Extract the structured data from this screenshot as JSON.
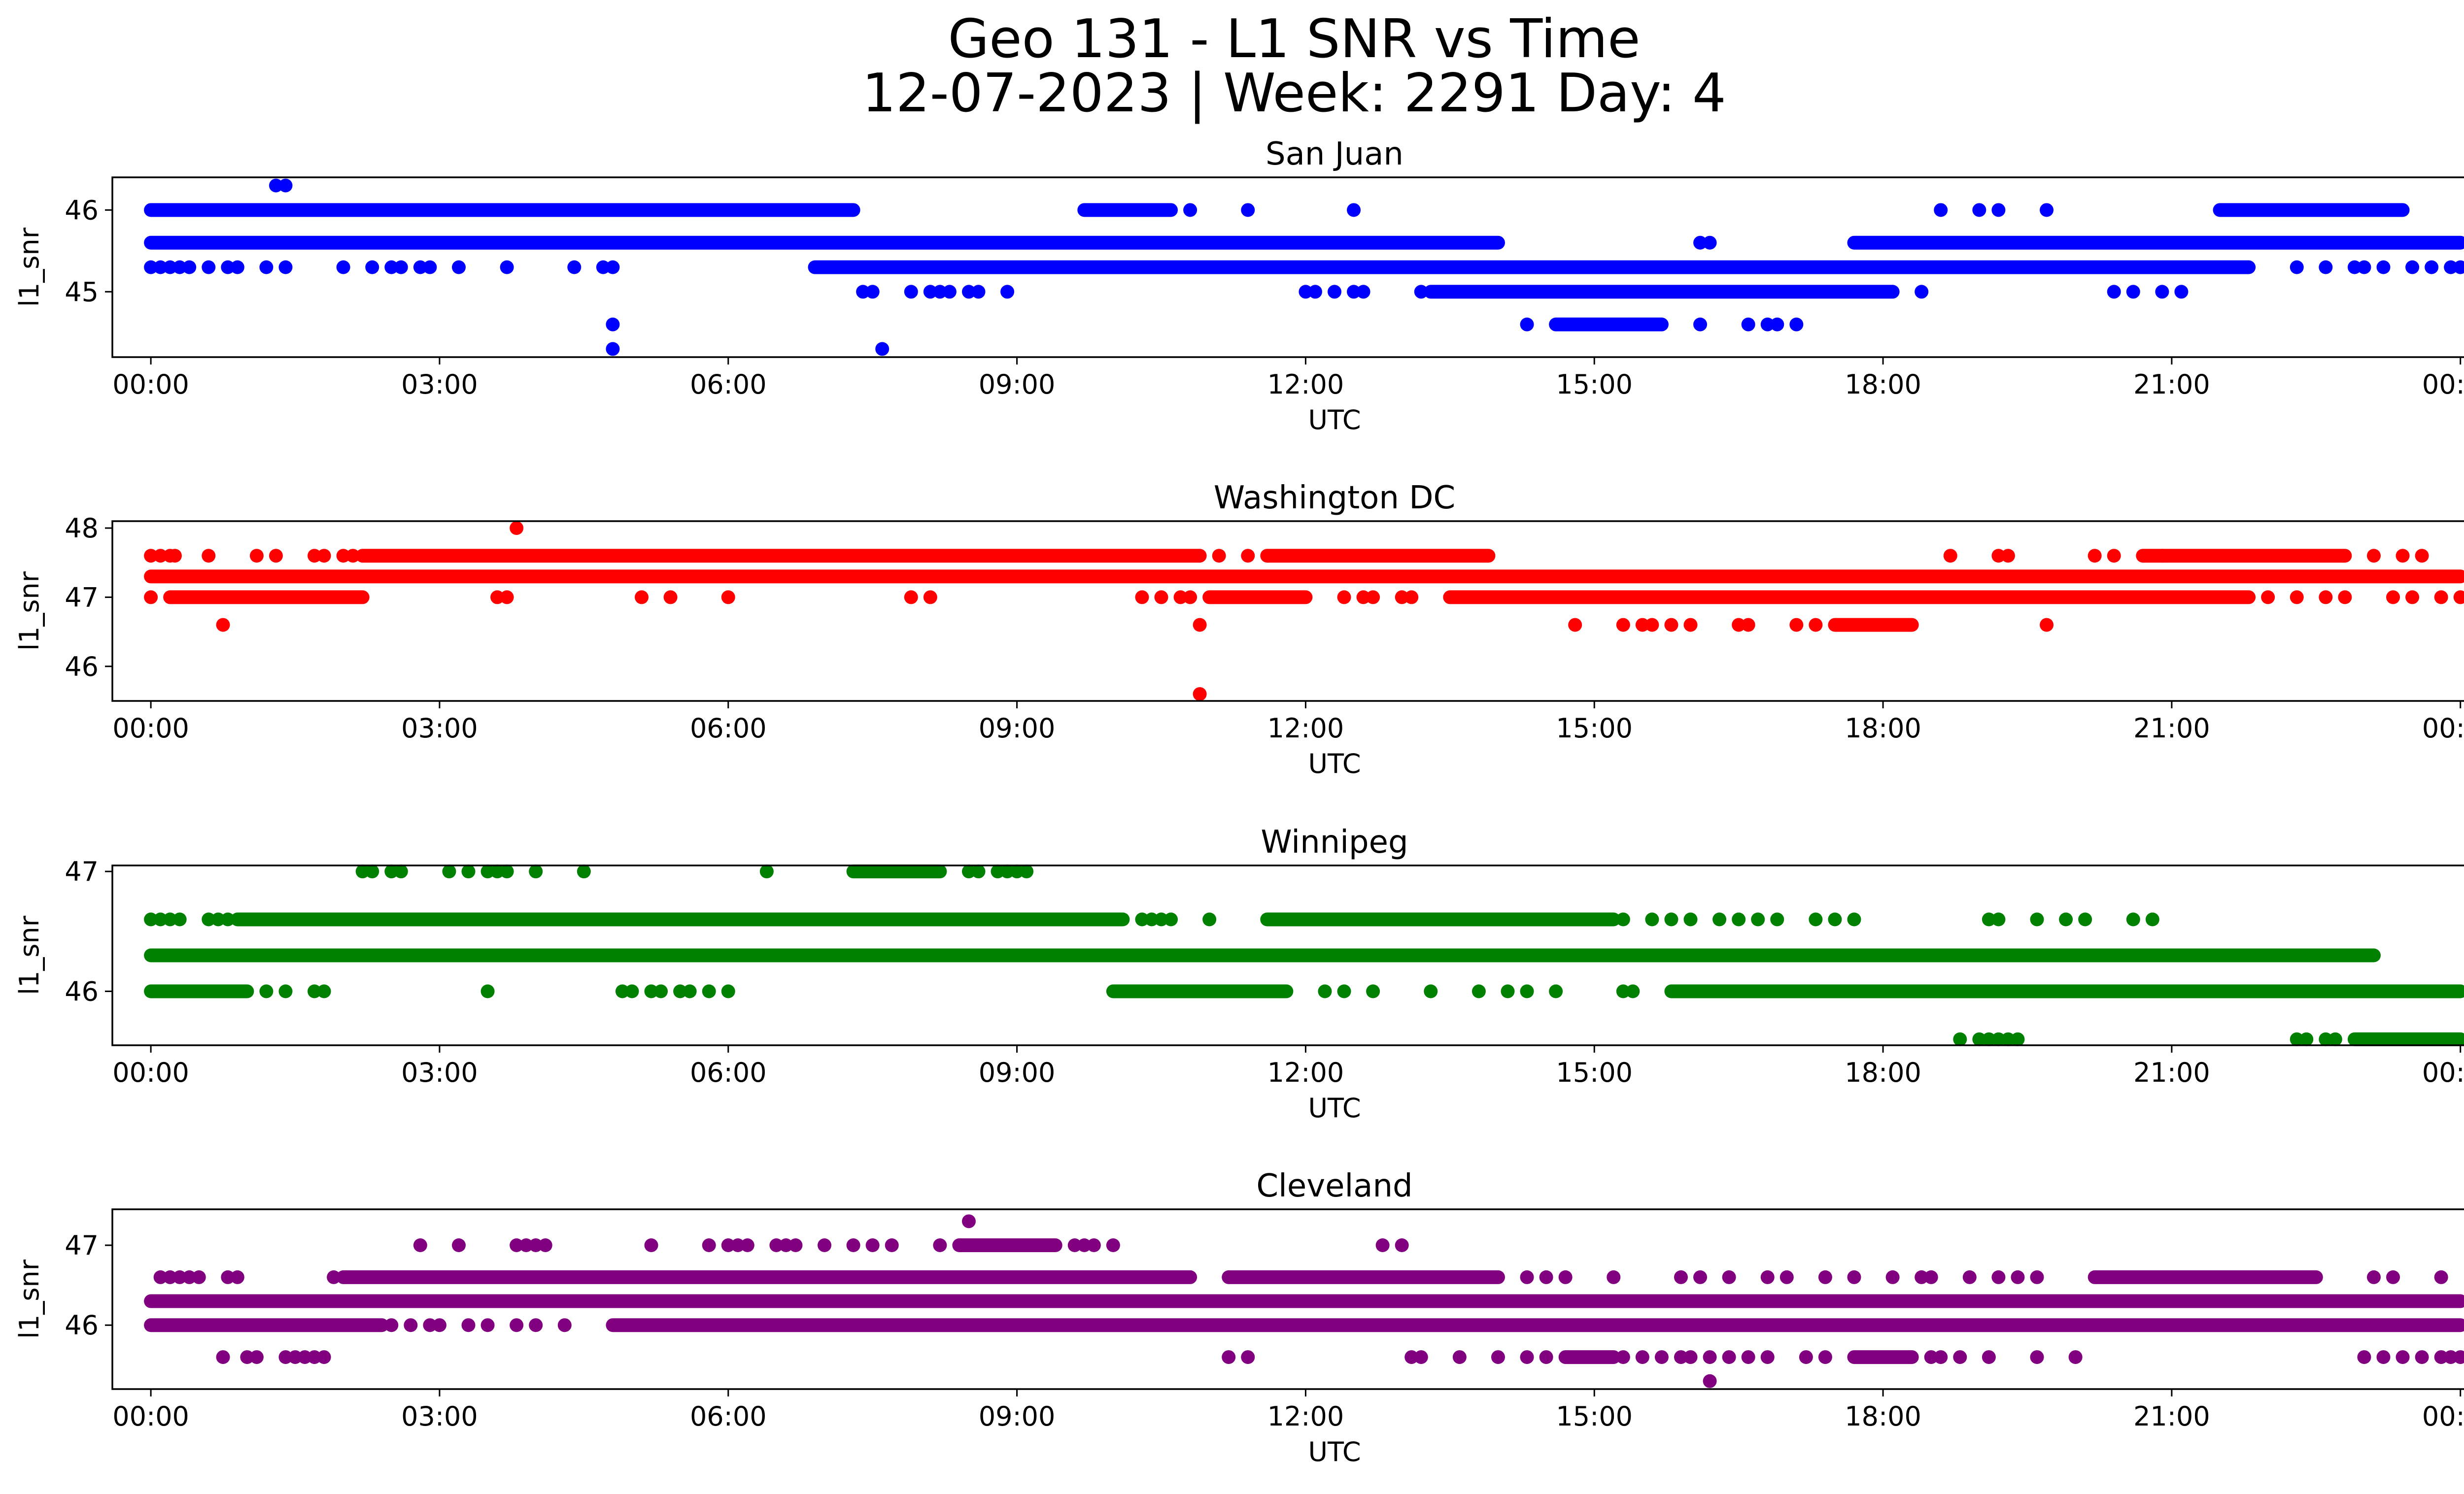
{
  "figure": {
    "title_line1": "Geo 131 - L1 SNR vs Time",
    "title_line2": "12-07-2023 | Week: 2291 Day: 4"
  },
  "chart_data": [
    {
      "type": "scatter",
      "title": "San Juan",
      "xlabel": "UTC",
      "ylabel": "l1_snr",
      "color": "#0000ff",
      "xlim_hours": [
        -0.4,
        25.0
      ],
      "ylim": [
        44.2,
        46.4
      ],
      "xticks": [
        "00:00",
        "03:00",
        "06:00",
        "09:00",
        "12:00",
        "15:00",
        "18:00",
        "21:00",
        "00:00"
      ],
      "yticks": [
        45,
        46
      ],
      "bands": [
        {
          "y": 46.0,
          "segments": [
            [
              0.0,
              7.3
            ],
            [
              9.7,
              10.6
            ],
            [
              21.5,
              23.4
            ]
          ],
          "points": [
            10.8,
            11.4,
            12.5,
            18.6,
            19.0,
            19.2,
            19.7
          ]
        },
        {
          "y": 45.6,
          "segments": [
            [
              0.0,
              14.0
            ],
            [
              17.7,
              24.0
            ]
          ],
          "points": [
            16.1,
            16.2
          ]
        },
        {
          "y": 45.3,
          "segments": [
            [
              6.9,
              21.8
            ]
          ],
          "points": [
            0.0,
            0.1,
            0.2,
            0.3,
            0.4,
            0.6,
            0.8,
            0.9,
            1.2,
            1.4,
            2.0,
            2.3,
            2.5,
            2.6,
            2.8,
            2.9,
            3.2,
            3.7,
            4.4,
            4.7,
            4.8,
            22.3,
            22.6,
            22.9,
            23.0,
            23.2,
            23.5,
            23.7,
            23.9,
            24.0
          ]
        },
        {
          "y": 45.0,
          "segments": [
            [
              13.3,
              18.1
            ]
          ],
          "points": [
            7.4,
            7.5,
            7.9,
            8.1,
            8.2,
            8.3,
            8.5,
            8.6,
            8.9,
            12.0,
            12.1,
            12.3,
            12.5,
            12.6,
            13.2,
            18.4,
            20.4,
            20.6,
            20.9,
            21.1
          ]
        },
        {
          "y": 44.6,
          "segments": [
            [
              14.6,
              15.7
            ]
          ],
          "points": [
            4.8,
            14.3,
            16.1,
            16.6,
            16.8,
            16.9,
            17.1
          ]
        },
        {
          "y": 44.3,
          "segments": [],
          "points": [
            4.8,
            7.6
          ]
        },
        {
          "y": 46.3,
          "segments": [],
          "points": [
            1.3,
            1.4
          ]
        }
      ]
    },
    {
      "type": "scatter",
      "title": "Washington DC",
      "xlabel": "UTC",
      "ylabel": "l1_snr",
      "color": "#ff0000",
      "xlim_hours": [
        -0.4,
        25.0
      ],
      "ylim": [
        45.5,
        48.1
      ],
      "xticks": [
        "00:00",
        "03:00",
        "06:00",
        "09:00",
        "12:00",
        "15:00",
        "18:00",
        "21:00",
        "00:00"
      ],
      "yticks": [
        46,
        47,
        48
      ],
      "bands": [
        {
          "y": 48.0,
          "segments": [],
          "points": [
            3.8
          ]
        },
        {
          "y": 47.6,
          "segments": [
            [
              2.2,
              10.9
            ],
            [
              11.6,
              13.9
            ],
            [
              20.7,
              22.8
            ]
          ],
          "points": [
            0.0,
            0.1,
            0.2,
            0.25,
            0.6,
            1.1,
            1.3,
            1.7,
            1.8,
            2.0,
            2.1,
            11.1,
            11.4,
            18.7,
            19.2,
            19.3,
            20.2,
            20.4,
            20.9,
            23.1,
            23.4,
            23.6
          ]
        },
        {
          "y": 47.3,
          "segments": [
            [
              0.0,
              24.0
            ]
          ],
          "points": []
        },
        {
          "y": 47.0,
          "segments": [
            [
              0.2,
              2.2
            ],
            [
              11.0,
              12.0
            ],
            [
              13.5,
              21.8
            ]
          ],
          "points": [
            0.0,
            3.6,
            3.7,
            5.1,
            5.4,
            6.0,
            7.9,
            8.1,
            10.3,
            10.5,
            10.7,
            10.8,
            12.4,
            12.6,
            12.7,
            13.0,
            13.1,
            22.0,
            22.3,
            22.6,
            22.8,
            23.3,
            23.5,
            23.8,
            24.0
          ]
        },
        {
          "y": 46.6,
          "segments": [
            [
              17.5,
              18.3
            ]
          ],
          "points": [
            0.75,
            10.9,
            14.8,
            15.3,
            15.5,
            15.6,
            15.8,
            16.0,
            16.5,
            16.6,
            17.1,
            17.3,
            19.7
          ]
        },
        {
          "y": 45.6,
          "segments": [],
          "points": [
            10.9
          ]
        }
      ]
    },
    {
      "type": "scatter",
      "title": "Winnipeg",
      "xlabel": "UTC",
      "ylabel": "l1_snr",
      "color": "#008000",
      "xlim_hours": [
        -0.4,
        25.0
      ],
      "ylim": [
        45.55,
        47.05
      ],
      "xticks": [
        "00:00",
        "03:00",
        "06:00",
        "09:00",
        "12:00",
        "15:00",
        "18:00",
        "21:00",
        "00:00"
      ],
      "yticks": [
        46,
        47
      ],
      "bands": [
        {
          "y": 47.0,
          "segments": [
            [
              7.3,
              8.2
            ]
          ],
          "points": [
            2.2,
            2.3,
            2.5,
            2.6,
            3.1,
            3.3,
            3.5,
            3.6,
            3.7,
            4.0,
            4.5,
            6.4,
            8.5,
            8.6,
            8.8,
            8.9,
            9.0,
            9.1
          ]
        },
        {
          "y": 46.6,
          "segments": [
            [
              0.9,
              10.1
            ],
            [
              11.6,
              15.2
            ]
          ],
          "points": [
            0.0,
            0.1,
            0.2,
            0.3,
            0.6,
            0.7,
            0.8,
            10.3,
            10.4,
            10.5,
            10.6,
            11.0,
            15.3,
            15.6,
            15.8,
            16.0,
            16.3,
            16.5,
            16.7,
            16.9,
            17.3,
            17.5,
            17.7,
            19.1,
            19.2,
            19.6,
            19.9,
            20.1,
            20.6,
            20.8
          ]
        },
        {
          "y": 46.3,
          "segments": [
            [
              0.0,
              23.1
            ]
          ],
          "points": []
        },
        {
          "y": 46.0,
          "segments": [
            [
              0.0,
              1.0
            ],
            [
              10.0,
              11.8
            ],
            [
              15.8,
              24.0
            ]
          ],
          "points": [
            1.2,
            1.4,
            1.7,
            1.8,
            3.5,
            4.9,
            5.0,
            5.2,
            5.3,
            5.5,
            5.6,
            5.8,
            6.0,
            12.2,
            12.4,
            12.7,
            13.3,
            13.8,
            14.1,
            14.3,
            14.6,
            15.3,
            15.4
          ]
        },
        {
          "y": 45.6,
          "segments": [
            [
              22.9,
              24.0
            ]
          ],
          "points": [
            18.8,
            19.0,
            19.1,
            19.2,
            19.3,
            19.4,
            22.3,
            22.4,
            22.6,
            22.7
          ]
        }
      ]
    },
    {
      "type": "scatter",
      "title": "Cleveland",
      "xlabel": "UTC",
      "ylabel": "l1_snr",
      "color": "#800080",
      "xlim_hours": [
        -0.4,
        25.0
      ],
      "ylim": [
        45.2,
        47.45
      ],
      "xticks": [
        "00:00",
        "03:00",
        "06:00",
        "09:00",
        "12:00",
        "15:00",
        "18:00",
        "21:00",
        "00:00"
      ],
      "yticks": [
        46,
        47
      ],
      "bands": [
        {
          "y": 47.3,
          "segments": [],
          "points": [
            8.5
          ]
        },
        {
          "y": 47.0,
          "segments": [
            [
              8.4,
              9.4
            ]
          ],
          "points": [
            2.8,
            3.2,
            3.8,
            3.9,
            4.0,
            4.1,
            5.2,
            5.8,
            6.0,
            6.1,
            6.2,
            6.5,
            6.6,
            6.7,
            7.0,
            7.3,
            7.5,
            7.7,
            8.2,
            9.6,
            9.7,
            9.8,
            10.0,
            12.8,
            13.0
          ]
        },
        {
          "y": 46.6,
          "segments": [
            [
              2.0,
              10.8
            ],
            [
              11.2,
              14.0
            ],
            [
              20.2,
              22.5
            ]
          ],
          "points": [
            0.1,
            0.2,
            0.3,
            0.4,
            0.5,
            0.8,
            0.9,
            1.9,
            14.3,
            14.5,
            14.7,
            15.2,
            15.9,
            16.1,
            16.4,
            16.8,
            17.0,
            17.4,
            17.7,
            18.1,
            18.4,
            18.5,
            18.9,
            19.2,
            19.4,
            19.6,
            23.1,
            23.3,
            23.8
          ]
        },
        {
          "y": 46.3,
          "segments": [
            [
              0.0,
              24.0
            ]
          ],
          "points": []
        },
        {
          "y": 46.0,
          "segments": [
            [
              0.0,
              2.4
            ],
            [
              4.8,
              24.0
            ]
          ],
          "points": [
            2.5,
            2.7,
            2.9,
            3.0,
            3.3,
            3.5,
            3.8,
            4.0,
            4.3
          ]
        },
        {
          "y": 45.6,
          "segments": [
            [
              14.7,
              15.2
            ],
            [
              17.7,
              18.3
            ]
          ],
          "points": [
            0.75,
            1.0,
            1.1,
            1.4,
            1.5,
            1.6,
            1.7,
            1.8,
            11.2,
            11.4,
            13.1,
            13.2,
            13.6,
            14.0,
            14.3,
            14.5,
            15.3,
            15.5,
            15.7,
            15.9,
            16.0,
            16.2,
            16.4,
            16.6,
            16.8,
            17.2,
            17.4,
            18.5,
            18.6,
            18.8,
            19.1,
            19.6,
            20.0,
            23.0,
            23.2,
            23.4,
            23.6,
            23.8,
            23.9,
            24.0
          ]
        },
        {
          "y": 45.3,
          "segments": [],
          "points": [
            16.2
          ]
        }
      ]
    }
  ]
}
